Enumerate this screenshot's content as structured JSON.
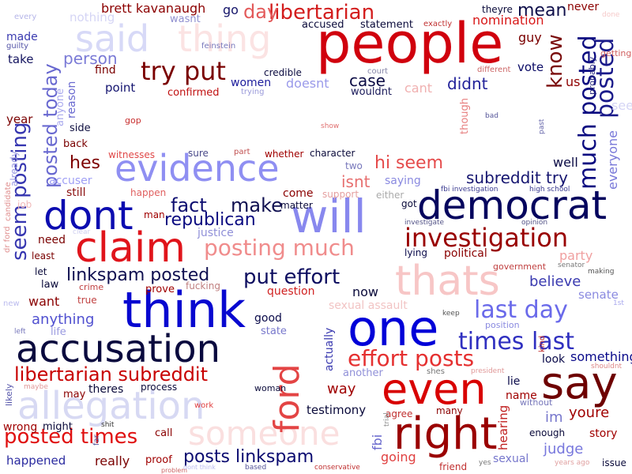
{
  "words": [
    {
      "text": "people",
      "color": "#d0000d"
    },
    {
      "text": "said",
      "color": "#d7d9f7"
    },
    {
      "text": "thing",
      "color": "#fbe3e3"
    },
    {
      "text": "evidence",
      "color": "#8f8ff2"
    },
    {
      "text": "dont",
      "color": "#0c0cb0"
    },
    {
      "text": "will",
      "color": "#8888ee"
    },
    {
      "text": "democrat",
      "color": "#05055e"
    },
    {
      "text": "claim",
      "color": "#e0141b"
    },
    {
      "text": "think",
      "color": "#0808d0"
    },
    {
      "text": "accusation",
      "color": "#0a0a3e"
    },
    {
      "text": "one",
      "color": "#0000d8"
    },
    {
      "text": "thats",
      "color": "#f7c6c6"
    },
    {
      "text": "allegation",
      "color": "#d7d9f3"
    },
    {
      "text": "someone",
      "color": "#fadfdf"
    },
    {
      "text": "ford",
      "color": "#e34444"
    },
    {
      "text": "even",
      "color": "#d80000"
    },
    {
      "text": "say",
      "color": "#6e0000"
    },
    {
      "text": "right",
      "color": "#9a0000"
    },
    {
      "text": "try put",
      "color": "#7a0000"
    },
    {
      "text": "investigation",
      "color": "#990000"
    },
    {
      "text": "posting much",
      "color": "#f08c8c"
    },
    {
      "text": "put effort",
      "color": "#0e0e60"
    },
    {
      "text": "last day",
      "color": "#6a6aea"
    },
    {
      "text": "times last",
      "color": "#3030c0"
    },
    {
      "text": "effort posts",
      "color": "#e53030"
    },
    {
      "text": "libertarian subreddit",
      "color": "#c80000"
    },
    {
      "text": "posted times",
      "color": "#e01010"
    },
    {
      "text": "posts linkspam",
      "color": "#0a0a70"
    },
    {
      "text": "libertarian",
      "color": "#d31d1d"
    },
    {
      "text": "day",
      "color": "#e35a5a"
    },
    {
      "text": "mean",
      "color": "#0f0f4a"
    },
    {
      "text": "posted",
      "color": "#1a1a8a"
    },
    {
      "text": "much posted",
      "color": "#0a0a80"
    },
    {
      "text": "know",
      "color": "#7a0b0b"
    },
    {
      "text": "seem posting",
      "color": "#3636b0"
    },
    {
      "text": "posted today",
      "color": "#6868d0"
    },
    {
      "text": "fact",
      "color": "#0e0e70"
    },
    {
      "text": "make",
      "color": "#0f0f50"
    },
    {
      "text": "republican",
      "color": "#0a0a80"
    },
    {
      "text": "hi seem",
      "color": "#e54b4b"
    },
    {
      "text": "subreddit try",
      "color": "#151570"
    },
    {
      "text": "isnt",
      "color": "#e77070"
    },
    {
      "text": "hes",
      "color": "#7d0000"
    },
    {
      "text": "linkspam posted",
      "color": "#0f0f50"
    },
    {
      "text": "person",
      "color": "#7a7ad6"
    },
    {
      "text": "case",
      "color": "#0b0b44"
    },
    {
      "text": "didnt",
      "color": "#22229a"
    },
    {
      "text": "brett kavanaugh",
      "color": "#8c0000"
    },
    {
      "text": "nomination",
      "color": "#d81818"
    },
    {
      "text": "accused",
      "color": "#0a0a3a"
    },
    {
      "text": "statement",
      "color": "#0a0a3a"
    },
    {
      "text": "theyre",
      "color": "#0a0a3a"
    },
    {
      "text": "never",
      "color": "#8b0000"
    },
    {
      "text": "guy",
      "color": "#7a0000"
    },
    {
      "text": "vote",
      "color": "#0b0b66"
    },
    {
      "text": "us",
      "color": "#8f0000"
    },
    {
      "text": "probably",
      "color": "#2a2a80"
    },
    {
      "text": "everyone",
      "color": "#7777d8"
    },
    {
      "text": "see",
      "color": "#d5d5f5"
    },
    {
      "text": "done",
      "color": "#f6caca"
    },
    {
      "text": "getting",
      "color": "#d06060"
    },
    {
      "text": "go",
      "color": "#15156a"
    },
    {
      "text": "wasnt",
      "color": "#9090d0"
    },
    {
      "text": "nothing",
      "color": "#d5d5f5"
    },
    {
      "text": "every",
      "color": "#b5b5e8"
    },
    {
      "text": "made",
      "color": "#3a3ab0"
    },
    {
      "text": "guilty",
      "color": "#5555a8"
    },
    {
      "text": "take",
      "color": "#151560"
    },
    {
      "text": "year",
      "color": "#7a0000"
    },
    {
      "text": "find",
      "color": "#7a0000"
    },
    {
      "text": "feinstein",
      "color": "#7777bb"
    },
    {
      "text": "credible",
      "color": "#0c0c40"
    },
    {
      "text": "court",
      "color": "#8888aa"
    },
    {
      "text": "different",
      "color": "#cc6666"
    },
    {
      "text": "exactly",
      "color": "#c03030"
    },
    {
      "text": "women",
      "color": "#1c1c9c"
    },
    {
      "text": "doesnt",
      "color": "#9a9aea"
    },
    {
      "text": "trying",
      "color": "#9a9ada"
    },
    {
      "text": "wouldnt",
      "color": "#1a1a5a"
    },
    {
      "text": "cant",
      "color": "#f0b0b0"
    },
    {
      "text": "point",
      "color": "#151570"
    },
    {
      "text": "confirmed",
      "color": "#c01010"
    },
    {
      "text": "reason",
      "color": "#6a6ad0"
    },
    {
      "text": "anyone",
      "color": "#aaaaee"
    },
    {
      "text": "side",
      "color": "#0f0f40"
    },
    {
      "text": "gop",
      "color": "#c83030"
    },
    {
      "text": "back",
      "color": "#7a0000"
    },
    {
      "text": "show",
      "color": "#e07070"
    },
    {
      "text": "bad",
      "color": "#555599"
    },
    {
      "text": "though",
      "color": "#e78080"
    },
    {
      "text": "past",
      "color": "#6666aa"
    },
    {
      "text": "witnesses",
      "color": "#e04848"
    },
    {
      "text": "sure",
      "color": "#4a4a8a"
    },
    {
      "text": "part",
      "color": "#c05050"
    },
    {
      "text": "whether",
      "color": "#a00000"
    },
    {
      "text": "character",
      "color": "#0a0a3a"
    },
    {
      "text": "two",
      "color": "#7777bb"
    },
    {
      "text": "saying",
      "color": "#8a8ae0"
    },
    {
      "text": "well",
      "color": "#0a0a44"
    },
    {
      "text": "accuser",
      "color": "#9f9ff5"
    },
    {
      "text": "already",
      "color": "#9a9ae0"
    },
    {
      "text": "still",
      "color": "#8b1010"
    },
    {
      "text": "happen",
      "color": "#e06060"
    },
    {
      "text": "come",
      "color": "#8a0000"
    },
    {
      "text": "support",
      "color": "#e5a0a0"
    },
    {
      "text": "either",
      "color": "#aaaaaa"
    },
    {
      "text": "fbi investigation",
      "color": "#3a3a90"
    },
    {
      "text": "high school",
      "color": "#3a3a90"
    },
    {
      "text": "dr ford",
      "color": "#e09090"
    },
    {
      "text": "candidate",
      "color": "#e09090"
    },
    {
      "text": "job",
      "color": "#f0b8b8"
    },
    {
      "text": "man",
      "color": "#a00000"
    },
    {
      "text": "matter",
      "color": "#0a0a3a"
    },
    {
      "text": "got",
      "color": "#0a0a3a"
    },
    {
      "text": "investigate",
      "color": "#555588"
    },
    {
      "text": "opinion",
      "color": "#555588"
    },
    {
      "text": "need",
      "color": "#7a0000"
    },
    {
      "text": "clear",
      "color": "#cfcff0"
    },
    {
      "text": "justice",
      "color": "#9090d8"
    },
    {
      "text": "least",
      "color": "#7a0000"
    },
    {
      "text": "lying",
      "color": "#0a0a4a"
    },
    {
      "text": "political",
      "color": "#8a0000"
    },
    {
      "text": "party",
      "color": "#f0a0a0"
    },
    {
      "text": "senator",
      "color": "#777777"
    },
    {
      "text": "making",
      "color": "#555555"
    },
    {
      "text": "government",
      "color": "#c04040"
    },
    {
      "text": "believe",
      "color": "#3a3ab0"
    },
    {
      "text": "senate",
      "color": "#8a8ae0"
    },
    {
      "text": "1st",
      "color": "#aaaaee"
    },
    {
      "text": "let",
      "color": "#0a0a3a"
    },
    {
      "text": "law",
      "color": "#0a0a3a"
    },
    {
      "text": "crime",
      "color": "#c04040"
    },
    {
      "text": "prove",
      "color": "#a00000"
    },
    {
      "text": "fucking",
      "color": "#c08080"
    },
    {
      "text": "question",
      "color": "#d02020"
    },
    {
      "text": "now",
      "color": "#0a0a3a"
    },
    {
      "text": "sexual assault",
      "color": "#f2c4c4"
    },
    {
      "text": "want",
      "color": "#8a0000"
    },
    {
      "text": "true",
      "color": "#c04040"
    },
    {
      "text": "new",
      "color": "#bbbbee"
    },
    {
      "text": "left",
      "color": "#7777bb"
    },
    {
      "text": "anything",
      "color": "#5050d0"
    },
    {
      "text": "life",
      "color": "#9a9ae0"
    },
    {
      "text": "good",
      "color": "#0a0a4a"
    },
    {
      "text": "state",
      "color": "#7777cc"
    },
    {
      "text": "actually",
      "color": "#3a3ab0"
    },
    {
      "text": "keep",
      "color": "#555555"
    },
    {
      "text": "position",
      "color": "#8a8ae0"
    },
    {
      "text": "kind",
      "color": "#c03030"
    },
    {
      "text": "look",
      "color": "#0a0a4a"
    },
    {
      "text": "something",
      "color": "#0a0a8a"
    },
    {
      "text": "shouldnt",
      "color": "#dd8888"
    },
    {
      "text": "another",
      "color": "#9090d8"
    },
    {
      "text": "shes",
      "color": "#777777"
    },
    {
      "text": "president",
      "color": "#e09898"
    },
    {
      "text": "lie",
      "color": "#0a0a4a"
    },
    {
      "text": "name",
      "color": "#a00000"
    },
    {
      "text": "likely",
      "color": "#5555aa"
    },
    {
      "text": "maybe",
      "color": "#e09898"
    },
    {
      "text": "may",
      "color": "#8a0000"
    },
    {
      "text": "theres",
      "color": "#0a0a3a"
    },
    {
      "text": "process",
      "color": "#0a0a3a"
    },
    {
      "text": "woman",
      "color": "#0a0a3a"
    },
    {
      "text": "way",
      "color": "#a00000"
    },
    {
      "text": "without",
      "color": "#7777bb"
    },
    {
      "text": "testimony",
      "color": "#0a0a3a"
    },
    {
      "text": "im",
      "color": "#7777cc"
    },
    {
      "text": "youre",
      "color": "#a00000"
    },
    {
      "text": "agree",
      "color": "#c03030"
    },
    {
      "text": "many",
      "color": "#8a0000"
    },
    {
      "text": "trial",
      "color": "#888888"
    },
    {
      "text": "fbi",
      "color": "#6666cc"
    },
    {
      "text": "hearing",
      "color": "#c02020"
    },
    {
      "text": "enough",
      "color": "#0a0a3a"
    },
    {
      "text": "story",
      "color": "#a00000"
    },
    {
      "text": "judge",
      "color": "#7777dd"
    },
    {
      "text": "issue",
      "color": "#0a0a3a"
    },
    {
      "text": "years ago",
      "color": "#e0a0a0"
    },
    {
      "text": "work",
      "color": "#e04040"
    },
    {
      "text": "wrong",
      "color": "#a00000"
    },
    {
      "text": "might",
      "color": "#0a0a3a"
    },
    {
      "text": "far",
      "color": "#555599"
    },
    {
      "text": "shit",
      "color": "#333333"
    },
    {
      "text": "call",
      "color": "#8a0000"
    },
    {
      "text": "happened",
      "color": "#2a2aa0"
    },
    {
      "text": "really",
      "color": "#7a0000"
    },
    {
      "text": "proof",
      "color": "#a00000"
    },
    {
      "text": "problem",
      "color": "#cc6666"
    },
    {
      "text": "dont think",
      "color": "#bbbbee"
    },
    {
      "text": "based",
      "color": "#555599"
    },
    {
      "text": "conservative",
      "color": "#c03030"
    },
    {
      "text": "friend",
      "color": "#c03030"
    },
    {
      "text": "going",
      "color": "#e04040"
    },
    {
      "text": "yes",
      "color": "#777777"
    },
    {
      "text": "sexual",
      "color": "#7777cc"
    }
  ]
}
